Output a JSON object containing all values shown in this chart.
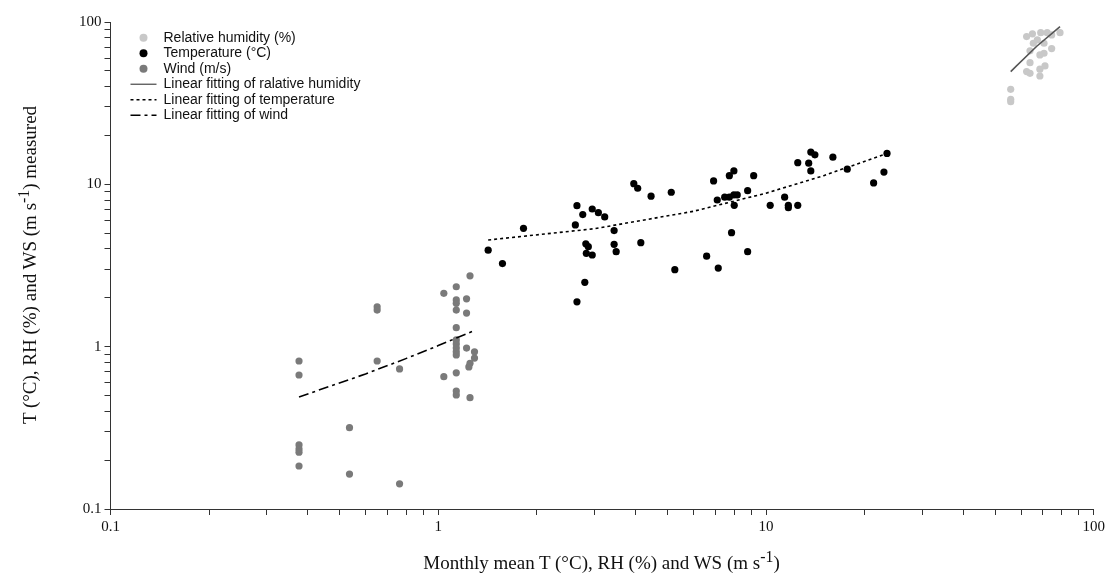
{
  "chart_data": {
    "type": "scatter",
    "xlabel": "Monthly mean T (°C), RH (%) and WS (m s$^{-1}$)",
    "ylabel": "T (°C), RH (%) and WS (m s$^{-1}$) measured",
    "log": "xy",
    "grid": false,
    "legend": "top left",
    "marker": "circle",
    "xlim": [
      0.1,
      100
    ],
    "ylim": [
      0.1,
      100
    ],
    "xticks": [
      0.1,
      {
        "value": 0.2,
        "label": null
      },
      {
        "value": 0.3,
        "label": null
      },
      {
        "value": 0.4,
        "label": null
      },
      {
        "value": 0.5,
        "label": null
      },
      {
        "value": 0.6,
        "label": null
      },
      {
        "value": 0.7,
        "label": null
      },
      {
        "value": 0.8,
        "label": null
      },
      {
        "value": 0.9,
        "label": null
      },
      1,
      {
        "value": 2,
        "label": null
      },
      {
        "value": 3,
        "label": null
      },
      {
        "value": 4,
        "label": null
      },
      {
        "value": 5,
        "label": null
      },
      {
        "value": 6,
        "label": null
      },
      {
        "value": 7,
        "label": null
      },
      {
        "value": 8,
        "label": null
      },
      {
        "value": 9,
        "label": null
      },
      10,
      {
        "value": 20,
        "label": null
      },
      {
        "value": 30,
        "label": null
      },
      {
        "value": 40,
        "label": null
      },
      {
        "value": 50,
        "label": null
      },
      {
        "value": 60,
        "label": null
      },
      {
        "value": 70,
        "label": null
      },
      {
        "value": 80,
        "label": null
      },
      {
        "value": 90,
        "label": null
      },
      100
    ],
    "yticks": [
      0.1,
      {
        "value": 0.2,
        "label": null
      },
      {
        "value": 0.3,
        "label": null
      },
      {
        "value": 0.4,
        "label": null
      },
      {
        "value": 0.5,
        "label": null
      },
      {
        "value": 0.6,
        "label": null
      },
      {
        "value": 0.7,
        "label": null
      },
      {
        "value": 0.8,
        "label": null
      },
      {
        "value": 0.9,
        "label": null
      },
      1,
      {
        "value": 2,
        "label": null
      },
      {
        "value": 3,
        "label": null
      },
      {
        "value": 4,
        "label": null
      },
      {
        "value": 5,
        "label": null
      },
      {
        "value": 6,
        "label": null
      },
      {
        "value": 7,
        "label": null
      },
      {
        "value": 8,
        "label": null
      },
      {
        "value": 9,
        "label": null
      },
      10,
      {
        "value": 20,
        "label": null
      },
      {
        "value": 30,
        "label": null
      },
      {
        "value": 40,
        "label": null
      },
      {
        "value": 50,
        "label": null
      },
      {
        "value": 60,
        "label": null
      },
      {
        "value": 70,
        "label": null
      },
      {
        "value": 80,
        "label": null
      },
      {
        "value": 90,
        "label": null
      },
      100
    ],
    "series": [
      {
        "name": "Relative humidity (%)",
        "color": "#c8c8c8",
        "x": [
          55.8,
          55.8,
          55.8,
          62.4,
          63.9,
          68.5,
          68.5,
          71.0,
          63.9,
          63.9,
          68.5,
          70.5,
          74.4,
          62.4,
          65.0,
          68.9,
          72.1,
          74.4,
          78.9,
          67.3,
          70.5,
          65.4
        ],
        "values": [
          38.5,
          33.4,
          32.3,
          49.5,
          48.3,
          51.2,
          46.5,
          53.6,
          56.2,
          66.4,
          62.7,
          64.2,
          68.6,
          81.3,
          84.5,
          86.0,
          86.0,
          83.3,
          86.0,
          77.6,
          74.0,
          74.0
        ]
      },
      {
        "name": "Temperature (°C)",
        "color": "#000000",
        "x": [
          1.42,
          1.57,
          1.82,
          2.65,
          2.62,
          2.76,
          2.95,
          3.08,
          3.22,
          3.44,
          2.82,
          2.87,
          2.83,
          2.95,
          3.44,
          3.49,
          2.8,
          2.65,
          3.95,
          4.06,
          4.46,
          4.15,
          5.14,
          5.27,
          6.59,
          7.15,
          6.92,
          7.1,
          7.48,
          7.73,
          7.98,
          8.17,
          8.0,
          7.73,
          7.98,
          7.85,
          8.79,
          9.17,
          8.79,
          10.3,
          11.4,
          11.7,
          11.7,
          12.5,
          12.5,
          13.7,
          14.1,
          13.5,
          13.7,
          16.0,
          17.7,
          21.3,
          22.9,
          23.4
        ],
        "values": [
          3.93,
          3.25,
          5.36,
          7.39,
          5.62,
          6.51,
          7.05,
          6.69,
          6.3,
          5.19,
          4.3,
          4.13,
          3.76,
          3.67,
          4.27,
          3.85,
          2.49,
          1.89,
          10.1,
          9.46,
          8.45,
          4.37,
          8.94,
          2.98,
          3.61,
          3.05,
          10.5,
          8.01,
          8.33,
          8.33,
          8.61,
          8.61,
          7.43,
          11.3,
          12.1,
          5.04,
          9.14,
          11.3,
          3.85,
          7.43,
          8.33,
          7.43,
          7.18,
          7.43,
          13.6,
          15.8,
          15.2,
          13.5,
          12.1,
          14.7,
          12.4,
          10.2,
          11.9,
          15.5
        ]
      },
      {
        "name": "Wind (m/s)",
        "color": "#7a7a7a",
        "x": [
          0.376,
          0.376,
          0.376,
          0.376,
          0.376,
          0.376,
          0.536,
          0.536,
          0.651,
          0.651,
          0.651,
          0.762,
          0.762,
          1.04,
          1.04,
          1.135,
          1.135,
          1.135,
          1.135,
          1.135,
          1.135,
          1.135,
          1.135,
          1.135,
          1.135,
          1.135,
          1.135,
          1.135,
          1.25,
          1.25,
          1.22,
          1.22,
          1.22,
          1.29,
          1.29,
          1.24,
          1.25
        ],
        "values": [
          0.816,
          0.669,
          0.248,
          0.234,
          0.224,
          0.184,
          0.317,
          0.164,
          1.76,
          1.68,
          0.816,
          0.729,
          0.143,
          2.13,
          0.653,
          2.34,
          1.94,
          1.85,
          1.68,
          1.31,
          1.1,
          1.04,
          0.98,
          0.93,
          0.89,
          0.69,
          0.533,
          0.504,
          0.485,
          2.73,
          1.61,
          1.97,
          0.98,
          0.85,
          0.93,
          0.75,
          0.79
        ]
      },
      {
        "name": "Linear fitting of ralative humidity",
        "type": "line",
        "marker": "none",
        "line_style": "solid",
        "color": "#555555",
        "x": [
          55.8,
          67,
          78.9
        ],
        "values": [
          49.5,
          70.9,
          93.7
        ]
      },
      {
        "name": "Linear fitting of temperature",
        "type": "line",
        "marker": "none",
        "line_style": "dotted",
        "color": "#000000",
        "x": [
          1.42,
          3,
          6,
          10,
          15,
          23.4
        ],
        "values": [
          4.54,
          5.33,
          6.82,
          8.82,
          11.31,
          15.5
        ]
      },
      {
        "name": "Linear fitting of wind",
        "type": "line",
        "marker": "none",
        "line_style": "dashdot",
        "color": "#000000",
        "x": [
          0.376,
          0.6,
          0.8,
          1.0,
          1.28
        ],
        "values": [
          0.49,
          0.679,
          0.847,
          1.015,
          1.25
        ]
      }
    ]
  }
}
